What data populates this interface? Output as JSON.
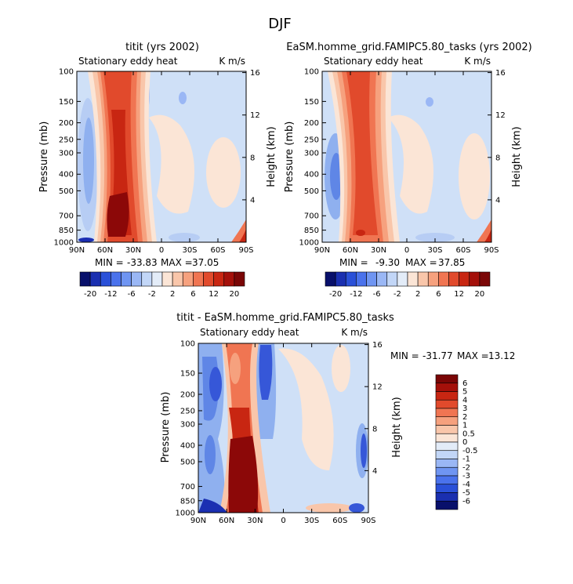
{
  "figure": {
    "title": "DJF"
  },
  "chart_data": [
    {
      "type": "heatmap",
      "panel": "top-left",
      "title": "titit (yrs 2002)",
      "subtitle_left": "Stationary eddy heat",
      "subtitle_right": "K m/s",
      "xlabel": "",
      "ylabel": "Pressure (mb)",
      "ylabel_right": "Height (km)",
      "x_ticks": [
        "90N",
        "60N",
        "30N",
        "0",
        "30S",
        "60S",
        "90S"
      ],
      "y_ticks": [
        "100",
        "150",
        "200",
        "250",
        "300",
        "400",
        "500",
        "700",
        "850",
        "1000"
      ],
      "y_right_ticks": [
        "16",
        "12",
        "8",
        "4"
      ],
      "stats": {
        "min_label": "MIN = ",
        "min": "-33.83",
        "max_label": "MAX = ",
        "max": "37.05"
      }
    },
    {
      "type": "heatmap",
      "panel": "top-right",
      "title": "EaSM.homme_grid.FAMIPC5.80_tasks (yrs 2002)",
      "subtitle_left": "Stationary eddy heat",
      "subtitle_right": "K m/s",
      "xlabel": "",
      "ylabel": "Pressure (mb)",
      "ylabel_right": "Height (km)",
      "x_ticks": [
        "90N",
        "60N",
        "30N",
        "0",
        "30S",
        "60S",
        "90S"
      ],
      "y_ticks": [
        "100",
        "150",
        "200",
        "250",
        "300",
        "400",
        "500",
        "700",
        "850",
        "1000"
      ],
      "y_right_ticks": [
        "16",
        "12",
        "8",
        "4"
      ],
      "stats": {
        "min_label": "MIN = ",
        "min": "-9.30",
        "max_label": "MAX = ",
        "max": "37.85"
      }
    },
    {
      "type": "heatmap",
      "panel": "bottom",
      "title": "titit - EaSM.homme_grid.FAMIPC5.80_tasks",
      "subtitle_left": "Stationary eddy heat",
      "subtitle_right": "K m/s",
      "xlabel": "",
      "ylabel": "Pressure (mb)",
      "ylabel_right": "Height (km)",
      "x_ticks": [
        "90N",
        "60N",
        "30N",
        "0",
        "30S",
        "60S",
        "90S"
      ],
      "y_ticks": [
        "100",
        "150",
        "200",
        "250",
        "300",
        "400",
        "500",
        "700",
        "850",
        "1000"
      ],
      "y_right_ticks": [
        "16",
        "12",
        "8",
        "4"
      ],
      "stats": {
        "min_label": "MIN = ",
        "min": "-31.77",
        "max_label": "MAX = ",
        "max": "13.12"
      }
    }
  ],
  "colorbar_top": {
    "labels": [
      "-20",
      "-12",
      "-6",
      "-2",
      "2",
      "6",
      "12",
      "20"
    ],
    "colors": [
      "#08106b",
      "#1a2fb0",
      "#2a50d8",
      "#4a72ec",
      "#6f95f2",
      "#9ab7f5",
      "#c2d6f7",
      "#e3ecf8",
      "#fbe5d6",
      "#f9c6aa",
      "#f6a17e",
      "#f07552",
      "#e14a2c",
      "#c82612",
      "#a4100a",
      "#7a0606"
    ]
  },
  "colorbar_diff": {
    "labels": [
      "6",
      "5",
      "4",
      "3",
      "2",
      "1",
      "0.5",
      "0",
      "-0.5",
      "-1",
      "-2",
      "-3",
      "-4",
      "-5",
      "-6"
    ],
    "colors": [
      "#7a0606",
      "#a4100a",
      "#c82612",
      "#e14a2c",
      "#f07552",
      "#f6a17e",
      "#f9c6aa",
      "#fbe5d6",
      "#e3ecf8",
      "#c2d6f7",
      "#9ab7f5",
      "#6f95f2",
      "#4a72ec",
      "#2a50d8",
      "#1a2fb0",
      "#08106b"
    ]
  },
  "palette": {
    "bg": "#cfe0f7",
    "pos1": "#fbe5d6",
    "pos2": "#f9c6aa",
    "pos3": "#f6a17e",
    "pos4": "#f07552",
    "pos5": "#e14a2c",
    "pos6": "#c82612",
    "pos7": "#8c0808",
    "neg1": "#b7cdf4",
    "neg2": "#8fb0ef",
    "neg3": "#5f86e6",
    "neg4": "#3657d8",
    "neg5": "#1b2fb2",
    "neg6": "#0a1a7e"
  }
}
